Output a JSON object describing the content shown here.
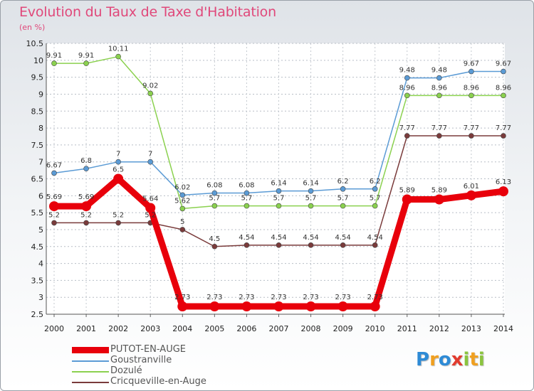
{
  "header": {
    "title": "Evolution du Taux de Taxe d'Habitation",
    "subtitle": "(en %)"
  },
  "chart_data": {
    "type": "line",
    "title": "Evolution du Taux de Taxe d'Habitation",
    "ylabel": "(en %)",
    "xlabel": "",
    "x": [
      "2000",
      "2001",
      "2002",
      "2003",
      "2004",
      "2005",
      "2006",
      "2007",
      "2008",
      "2009",
      "2010",
      "2011",
      "2012",
      "2013",
      "2014"
    ],
    "ylim": [
      2.5,
      10.5
    ],
    "yticks": [
      "2.5",
      "3",
      "3.5",
      "4",
      "4.5",
      "5",
      "5.5",
      "6",
      "6.5",
      "7",
      "7.5",
      "8",
      "8.5",
      "9",
      "9.5",
      "10",
      "10.5"
    ],
    "grid": true,
    "legend_position": "bottom-left",
    "series": [
      {
        "name": "PUTOT-EN-AUGE",
        "color": "#e8000b",
        "values": [
          5.69,
          5.69,
          6.5,
          5.64,
          2.73,
          2.73,
          2.73,
          2.73,
          2.73,
          2.73,
          2.73,
          5.89,
          5.89,
          6.01,
          6.13
        ],
        "labels": [
          "5.69",
          "5.69",
          "6.5",
          "5.64",
          "2.73",
          "2.73",
          "2.73",
          "2.73",
          "2.73",
          "2.73",
          "2.73",
          "5.89",
          "5.89",
          "6.01",
          "6.13"
        ]
      },
      {
        "name": "Goustranville",
        "color": "#5b9bd5",
        "values": [
          6.67,
          6.8,
          7,
          7,
          6.02,
          6.08,
          6.08,
          6.14,
          6.14,
          6.2,
          6.2,
          9.48,
          9.48,
          9.67,
          9.67
        ],
        "labels": [
          "6.67",
          "6.8",
          "7",
          "7",
          "6.02",
          "6.08",
          "6.08",
          "6.14",
          "6.14",
          "6.2",
          "6.2",
          "9.48",
          "9.48",
          "9.67",
          "9.67"
        ]
      },
      {
        "name": "Dozulé",
        "color": "#8bd14f",
        "values": [
          9.91,
          9.91,
          10.11,
          9.02,
          5.62,
          5.7,
          5.7,
          5.7,
          5.7,
          5.7,
          5.7,
          8.96,
          8.96,
          8.96,
          8.96
        ],
        "labels": [
          "9.91",
          "9.91",
          "10.11",
          "9.02",
          "5.62",
          "5.7",
          "5.7",
          "5.7",
          "5.7",
          "5.7",
          "5.7",
          "8.96",
          "8.96",
          "8.96",
          "8.96"
        ]
      },
      {
        "name": "Cricqueville-en-Auge",
        "color": "#7a3b3b",
        "values": [
          5.2,
          5.2,
          5.2,
          5.2,
          5,
          4.5,
          4.54,
          4.54,
          4.54,
          4.54,
          4.54,
          7.77,
          7.77,
          7.77,
          7.77
        ],
        "labels": [
          "5.2",
          "5.2",
          "5.2",
          "5.2",
          "5",
          "4.5",
          "4.54",
          "4.54",
          "4.54",
          "4.54",
          "4.54",
          "7.77",
          "7.77",
          "7.77",
          "7.77"
        ]
      }
    ]
  },
  "logo": {
    "letters": [
      "P",
      "r",
      "o",
      "x",
      "i",
      "t",
      "i"
    ],
    "colors": [
      "#2e8bd6",
      "#f0a020",
      "#2e8bd6",
      "#e23b2e",
      "#8bc43f",
      "#f0a020",
      "#8bc43f"
    ]
  }
}
